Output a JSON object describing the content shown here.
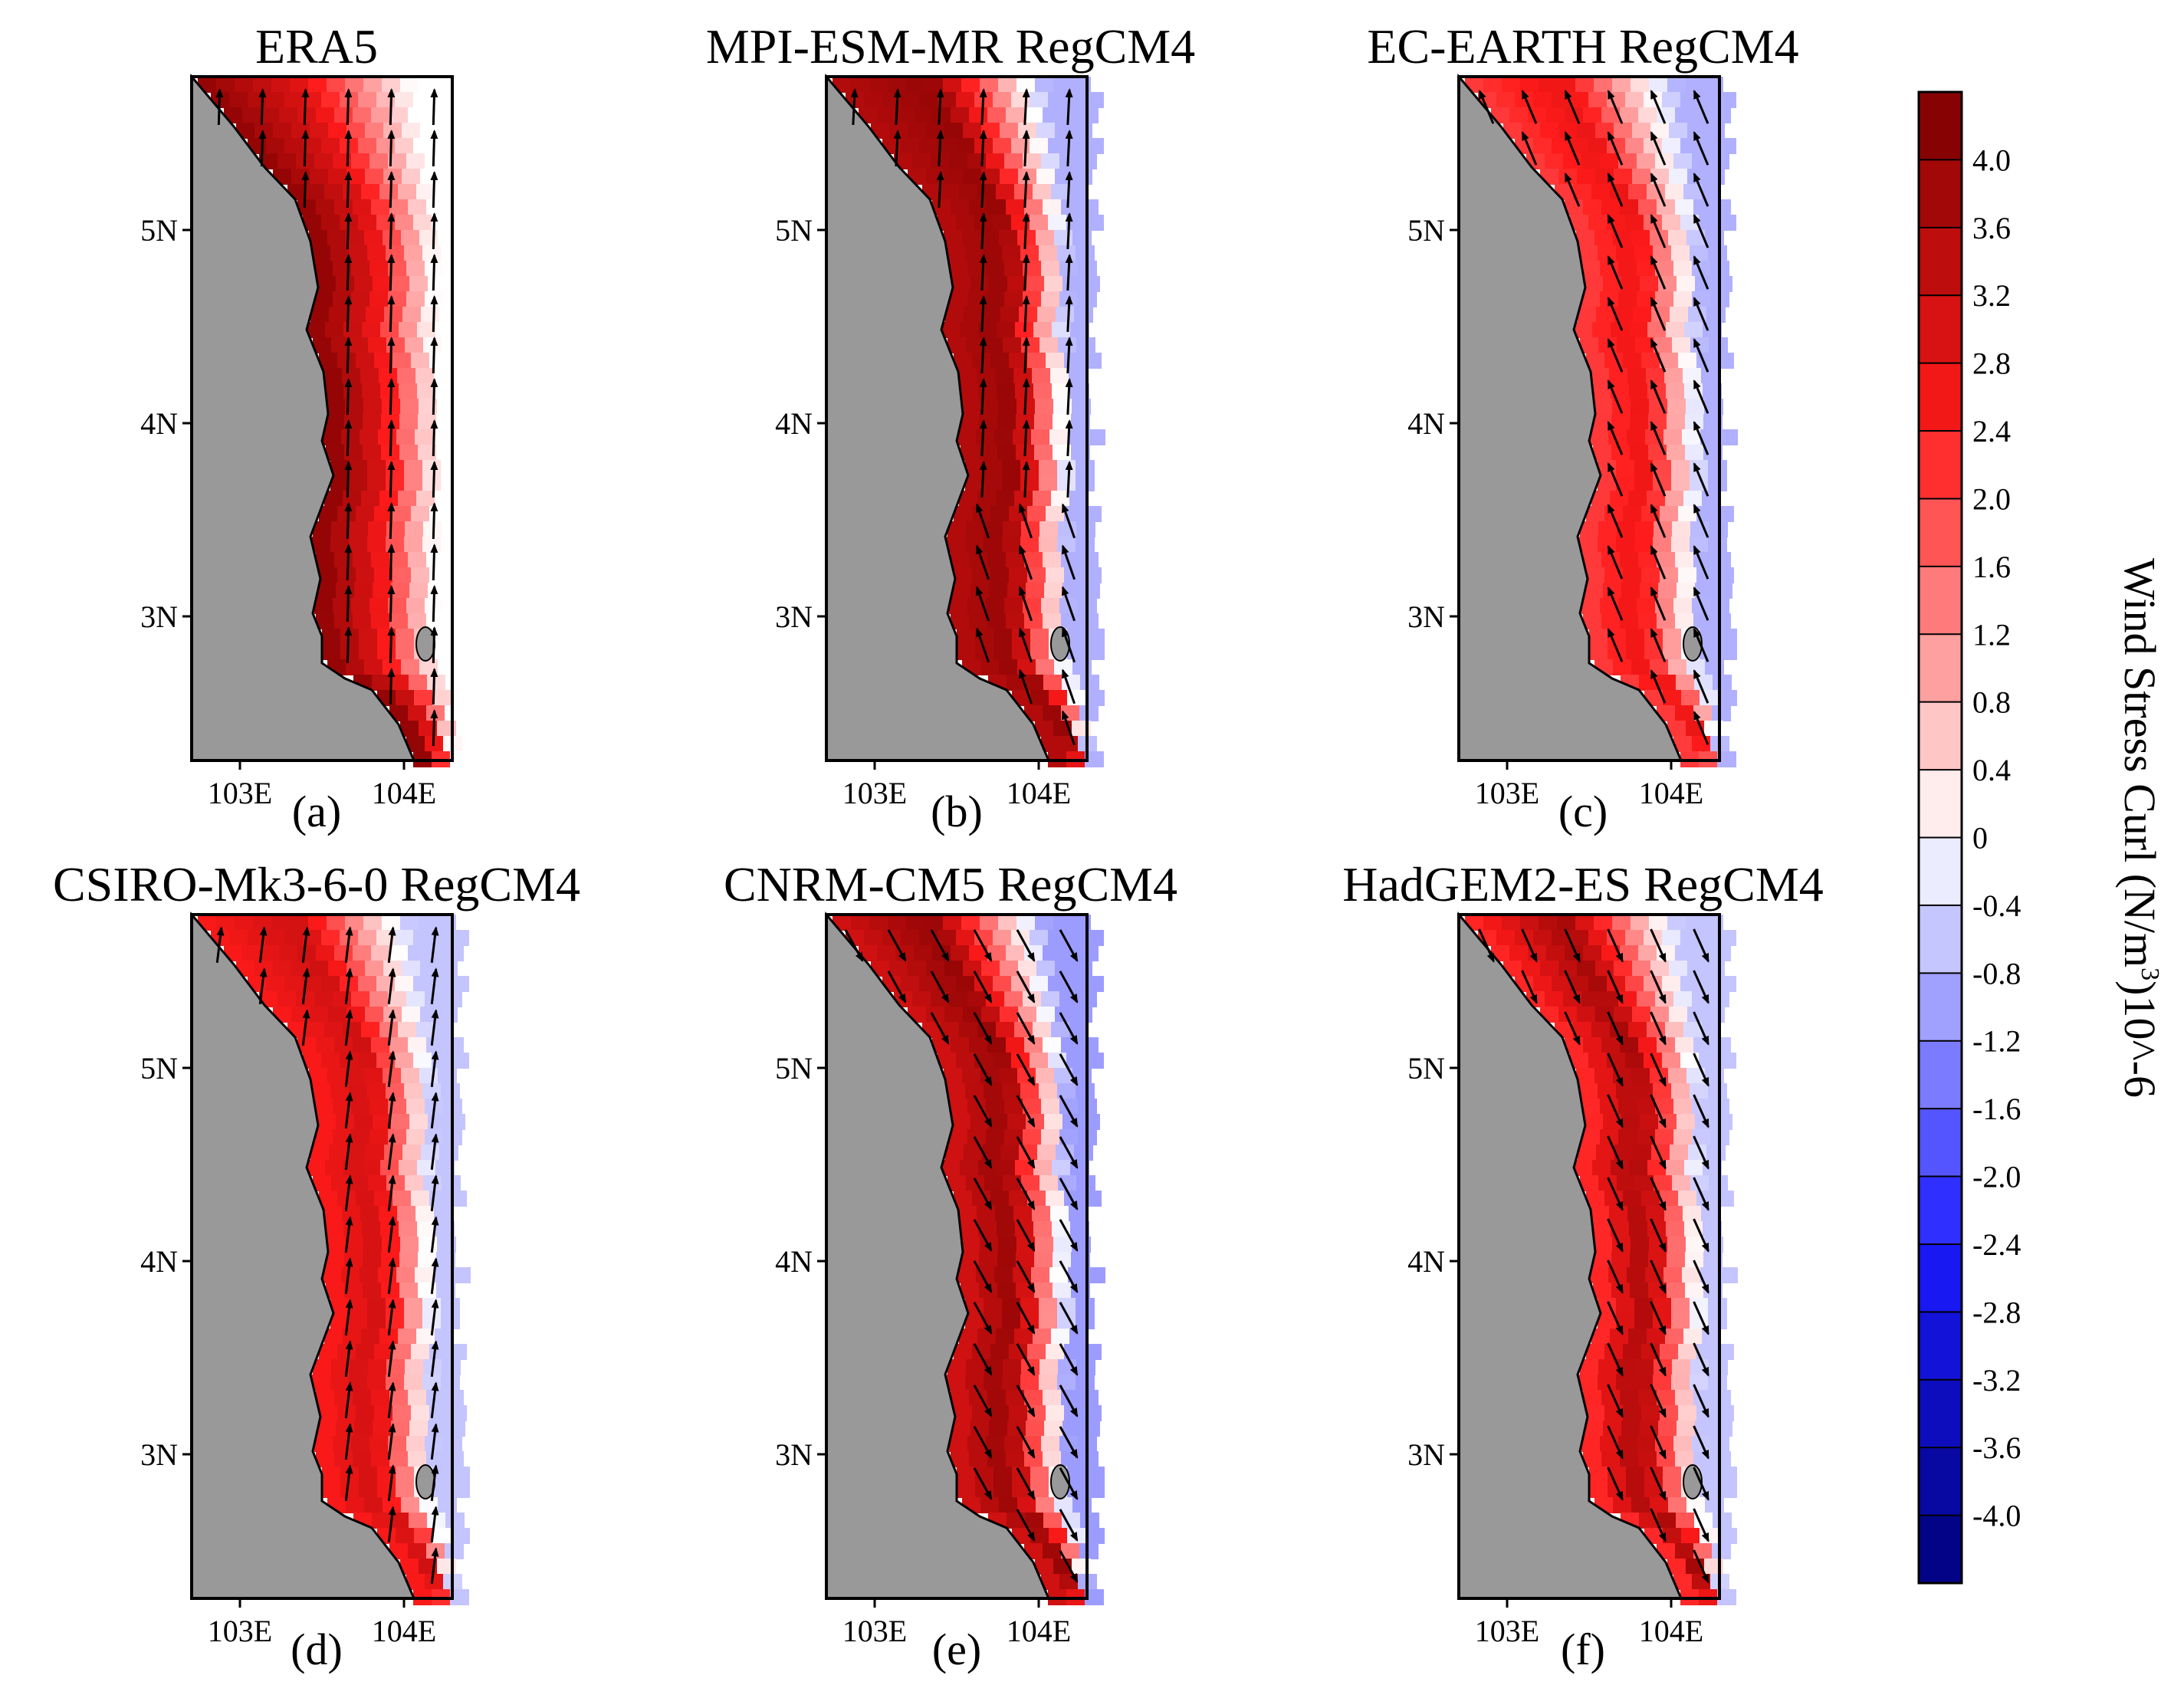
{
  "chart_data": [
    {
      "panel": "(a)",
      "title": "ERA5",
      "type": "heatmap",
      "x_ticks": [
        "103E",
        "104E"
      ],
      "y_ticks": [
        "5N",
        "4N",
        "3N"
      ],
      "curl_offshore_high": 2.8,
      "curl_offshore_low": 0.0,
      "curl_nearshore": 3.8,
      "wind": "northward"
    },
    {
      "panel": "(b)",
      "title": "MPI-ESM-MR  RegCM4",
      "type": "heatmap",
      "x_ticks": [
        "103E",
        "104E"
      ],
      "y_ticks": [
        "5N",
        "4N",
        "3N"
      ],
      "curl_offshore_high": 3.8,
      "curl_offshore_low": -0.8,
      "curl_nearshore": 3.4,
      "wind": "south-to-north, veering north-west in south"
    },
    {
      "panel": "(c)",
      "title": "EC-EARTH  RegCM4",
      "type": "heatmap",
      "x_ticks": [
        "103E",
        "104E"
      ],
      "y_ticks": [
        "5N",
        "4N",
        "3N"
      ],
      "curl_offshore_high": 2.6,
      "curl_offshore_low": -0.8,
      "curl_nearshore": 2.0,
      "wind": "north-westward"
    },
    {
      "panel": "(d)",
      "title": "CSIRO-Mk3-6-0  RegCM4",
      "type": "heatmap",
      "x_ticks": [
        "103E",
        "104E"
      ],
      "y_ticks": [
        "5N",
        "4N",
        "3N"
      ],
      "curl_offshore_high": 3.0,
      "curl_offshore_low": -0.6,
      "curl_nearshore": 2.4,
      "wind": "northward"
    },
    {
      "panel": "(e)",
      "title": "CNRM-CM5  RegCM4",
      "type": "heatmap",
      "x_ticks": [
        "103E",
        "104E"
      ],
      "y_ticks": [
        "5N",
        "4N",
        "3N"
      ],
      "curl_offshore_high": 3.8,
      "curl_offshore_low": -1.0,
      "curl_nearshore": 3.0,
      "wind": "south-eastward"
    },
    {
      "panel": "(f)",
      "title": "HadGEM2-ES  RegCM4",
      "type": "heatmap",
      "x_ticks": [
        "103E",
        "104E"
      ],
      "y_ticks": [
        "5N",
        "4N",
        "3N"
      ],
      "curl_offshore_high": 3.6,
      "curl_offshore_low": -0.6,
      "curl_nearshore": 2.2,
      "wind": "south-eastward"
    }
  ],
  "colorbar": {
    "title": "Wind Stress Curl (N/m",
    "title_sup": "3",
    "title_suffix": ")10^-6",
    "min": -4.2,
    "max": 4.2,
    "ticks": [
      "4.0",
      "3.6",
      "3.2",
      "2.8",
      "2.4",
      "2.0",
      "1.6",
      "1.2",
      "0.8",
      "0.4",
      "0",
      "-0.4",
      "-0.8",
      "-1.2",
      "-1.6",
      "-2.0",
      "-2.4",
      "-2.8",
      "-3.2",
      "-3.6",
      "-4.0"
    ],
    "tick_values": [
      4.0,
      3.6,
      3.2,
      2.8,
      2.4,
      2.0,
      1.6,
      1.2,
      0.8,
      0.4,
      0,
      -0.4,
      -0.8,
      -1.2,
      -1.6,
      -2.0,
      -2.4,
      -2.8,
      -3.2,
      -3.6,
      -4.0
    ],
    "colors": {
      "land": "#999999",
      "max": "#7a0000",
      "mid": "#ff1a1a",
      "zero": "#ffffff",
      "min_mid": "#1a1aff",
      "min": "#00007a"
    }
  }
}
